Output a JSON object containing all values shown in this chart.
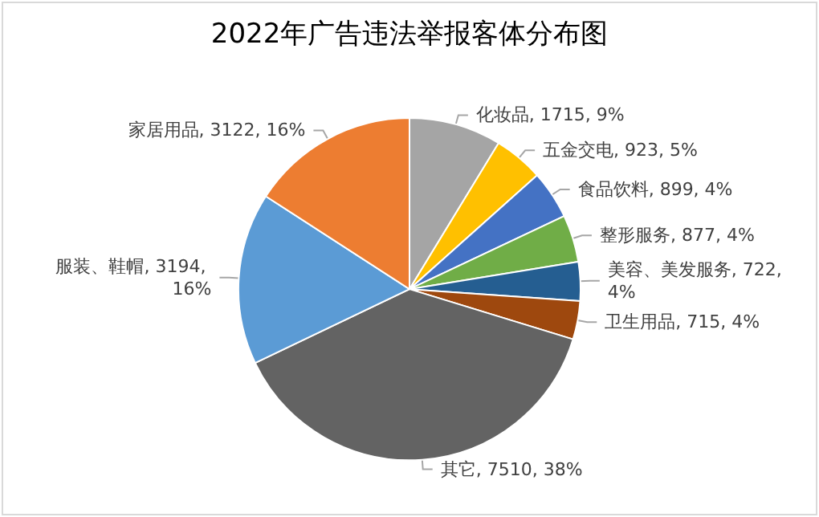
{
  "chart_data": {
    "type": "pie",
    "title": "2022年广告违法举报客体分布图",
    "categories": [
      "化妆品",
      "五金交电",
      "食品饮料",
      "整形服务",
      "美容、美发服务",
      "卫生用品",
      "其它",
      "服装、鞋帽",
      "家居用品"
    ],
    "values": [
      1715,
      923,
      899,
      877,
      722,
      715,
      7510,
      3194,
      3122
    ],
    "value_labels": [
      "1715, 9%",
      "923, 5%",
      "899, 4%",
      "877, 4%",
      "722, 4%",
      "715, 4%",
      "7510, 38%",
      "3194, 16%",
      "3122, 16%"
    ],
    "colors": [
      "#a5a5a5",
      "#ffc000",
      "#4472c4",
      "#70ad47",
      "#255e91",
      "#9e480e",
      "#636363",
      "#5b9bd5",
      "#ed7d31"
    ],
    "legend": false
  }
}
